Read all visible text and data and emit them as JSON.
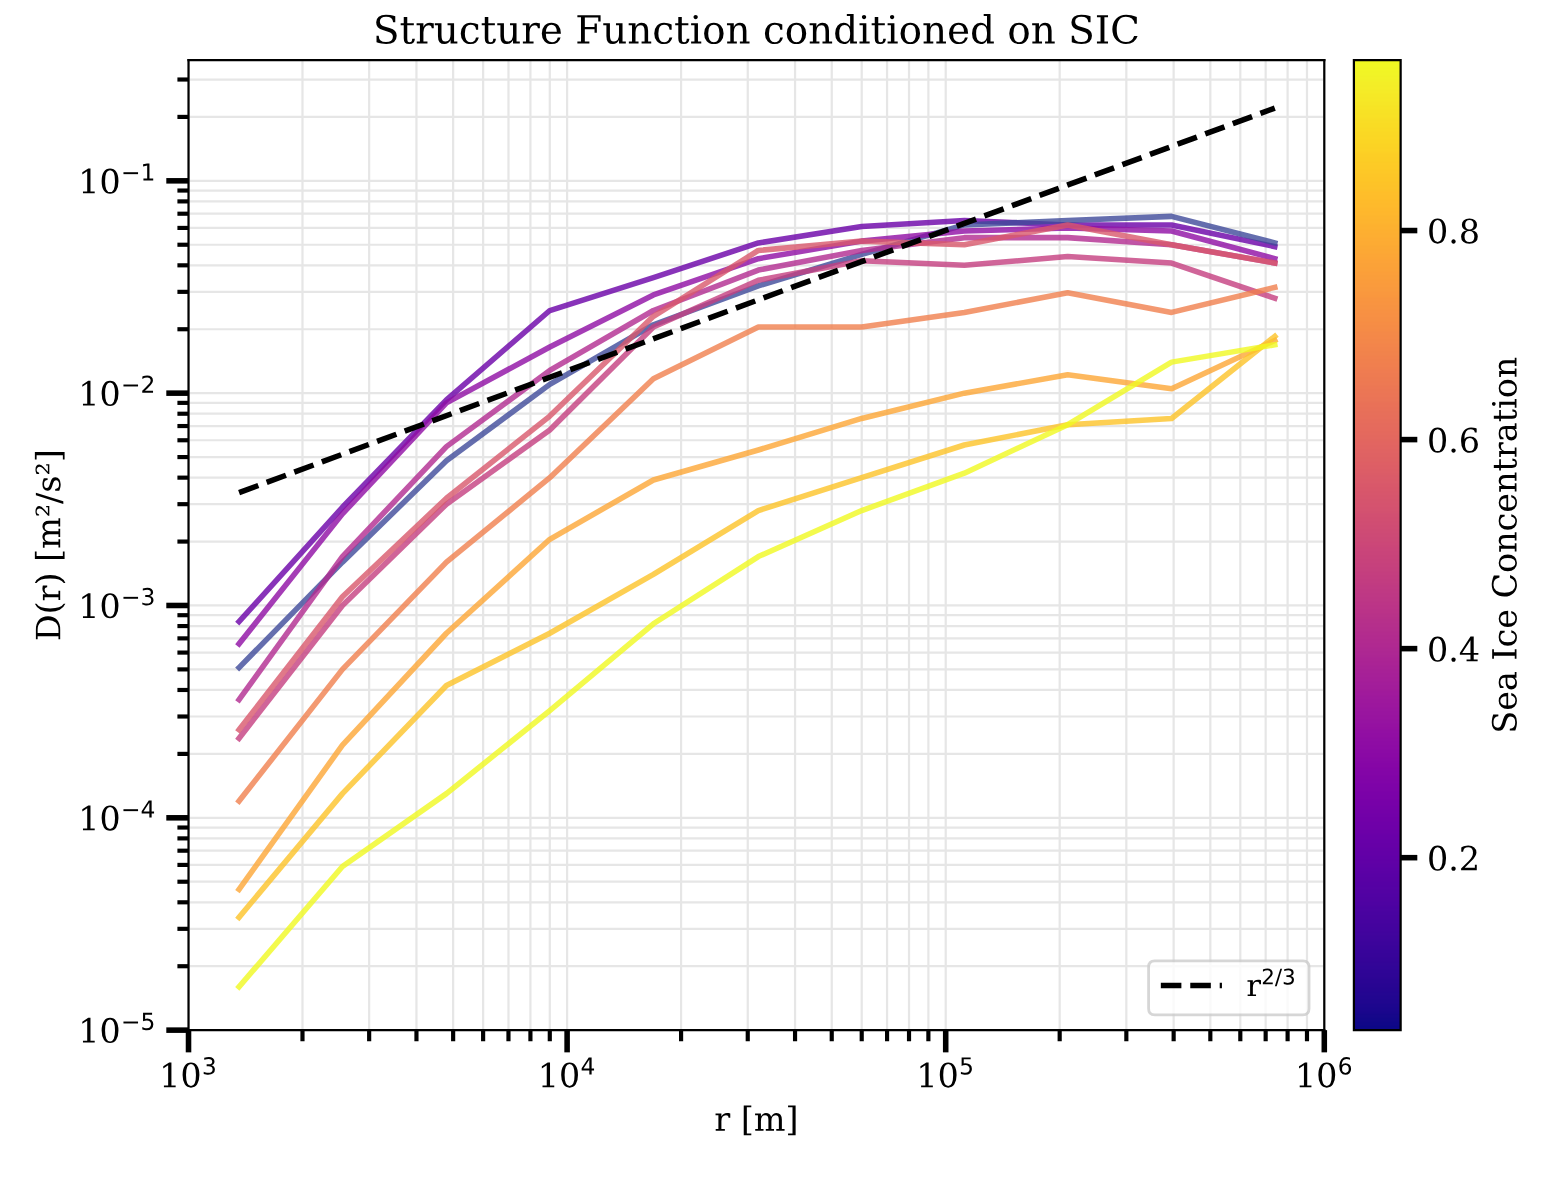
{
  "chart_data": {
    "type": "line",
    "title": "Structure Function conditioned on SIC",
    "xlabel": "r [m]",
    "ylabel": "D(r) [m²/s²]",
    "clabel": "Sea Ice Concentration",
    "x": [
      1360,
      2550,
      4800,
      9000,
      16900,
      32000,
      60000,
      112000,
      210000,
      395000,
      740000
    ],
    "series": [
      {
        "color": "#6a00a8",
        "values": [
          0.00084,
          0.0029,
          0.0093,
          0.0245,
          0.035,
          0.051,
          0.061,
          0.065,
          0.062,
          0.062,
          0.049
        ]
      },
      {
        "color": "#3e4a9a",
        "values": [
          0.00051,
          0.0016,
          0.0048,
          0.011,
          0.021,
          0.032,
          0.045,
          0.062,
          0.065,
          0.068,
          0.051
        ]
      },
      {
        "color": "#8f0da4",
        "values": [
          0.00066,
          0.0027,
          0.009,
          0.0165,
          0.029,
          0.043,
          0.052,
          0.058,
          0.06,
          0.058,
          0.043
        ]
      },
      {
        "color": "#b12a90",
        "values": [
          0.00036,
          0.0017,
          0.0056,
          0.0128,
          0.0245,
          0.038,
          0.047,
          0.054,
          0.054,
          0.05,
          0.041
        ]
      },
      {
        "color": "#c43e7f",
        "values": [
          0.000237,
          0.001,
          0.003,
          0.0067,
          0.0205,
          0.034,
          0.042,
          0.04,
          0.044,
          0.041,
          0.028
        ]
      },
      {
        "color": "#d8576b",
        "values": [
          0.00026,
          0.0011,
          0.0032,
          0.0078,
          0.023,
          0.047,
          0.052,
          0.05,
          0.062,
          0.05,
          0.041
        ]
      },
      {
        "color": "#f0804e",
        "values": [
          0.00012,
          0.0005,
          0.0016,
          0.004,
          0.0117,
          0.0205,
          0.0205,
          0.024,
          0.0297,
          0.024,
          0.0315
        ]
      },
      {
        "color": "#fca636",
        "values": [
          4.6e-05,
          0.00022,
          0.00074,
          0.00205,
          0.0039,
          0.0054,
          0.0076,
          0.01,
          0.0122,
          0.0105,
          0.0177
        ]
      },
      {
        "color": "#fdc328",
        "values": [
          3.4e-05,
          0.00013,
          0.00042,
          0.00074,
          0.0014,
          0.0028,
          0.004,
          0.0057,
          0.0071,
          0.0076,
          0.0185
        ]
      },
      {
        "color": "#f0f921",
        "values": [
          1.6e-05,
          5.9e-05,
          0.00013,
          0.00032,
          0.00082,
          0.0017,
          0.0028,
          0.0042,
          0.0071,
          0.014,
          0.0169
        ]
      },
      {
        "name": "r$^{2/3}$",
        "color": "#000000",
        "line_style": "dashed",
        "x": [
          1360,
          740000
        ],
        "values": [
          0.0034,
          0.22
        ]
      }
    ],
    "log": "xy",
    "xlim": [
      1000,
      1000000
    ],
    "ylim": [
      1e-05,
      0.37
    ],
    "xticks": [
      {
        "value": 1000,
        "label": "10$^{3}$"
      },
      {
        "value": 10000,
        "label": "10$^{4}$"
      },
      {
        "value": 100000,
        "label": "10$^{5}$"
      },
      {
        "value": 1000000,
        "label": "10$^{6}$"
      }
    ],
    "yticks": [
      {
        "value": 1e-05,
        "label": "10$^{−5}$"
      },
      {
        "value": 0.0001,
        "label": "10$^{−4}$"
      },
      {
        "value": 0.001,
        "label": "10$^{−3}$"
      },
      {
        "value": 0.01,
        "label": "10$^{−2}$"
      },
      {
        "value": 0.1,
        "label": "10$^{−1}$"
      }
    ],
    "clim": [
      0.035,
      0.963
    ],
    "cticks": [
      0.2,
      0.4,
      0.6,
      0.8
    ],
    "grid": true,
    "legend": "bottom right"
  }
}
